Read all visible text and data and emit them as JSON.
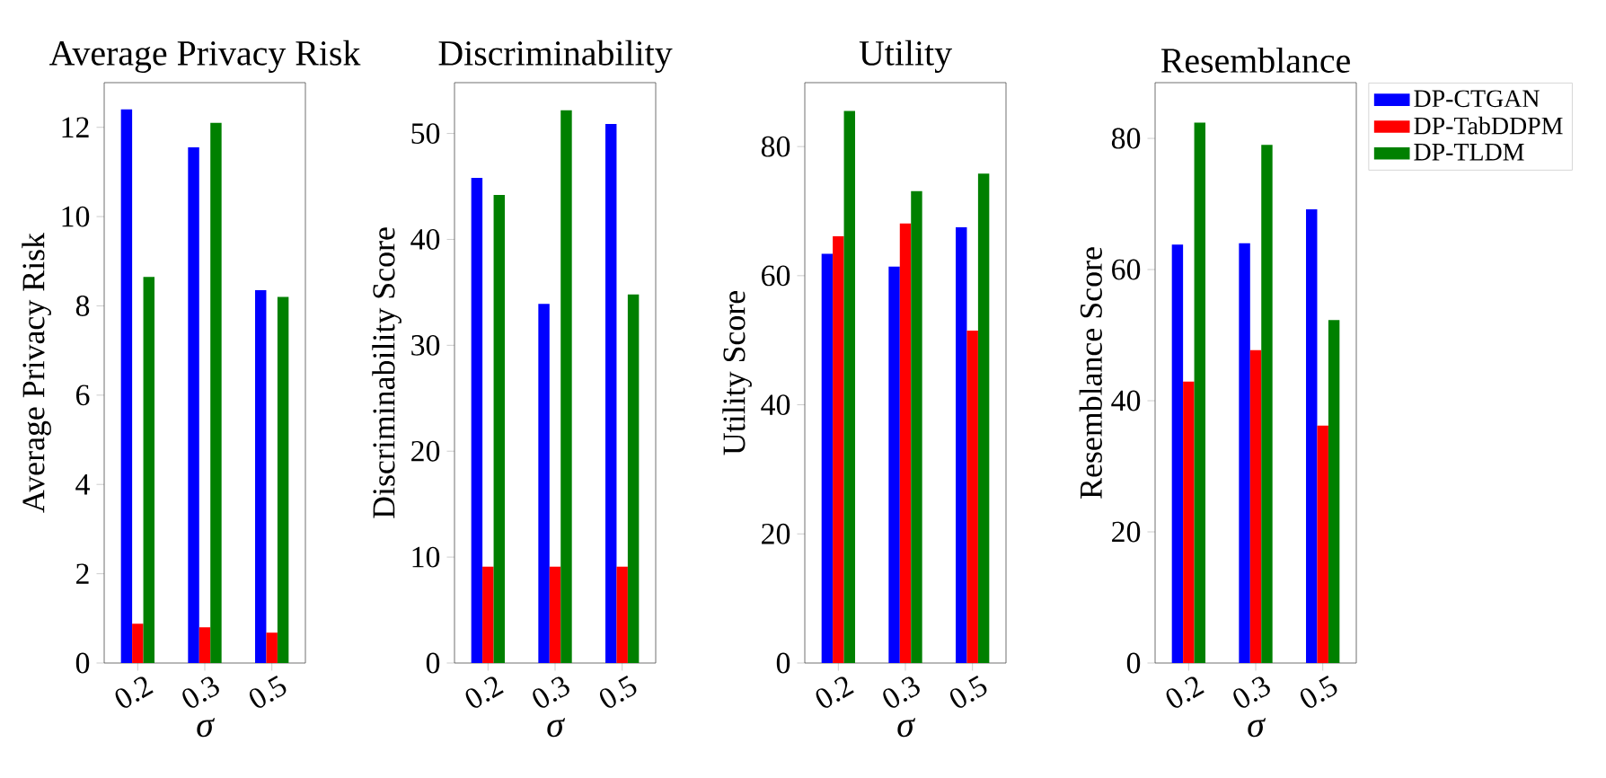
{
  "chart_data": [
    {
      "type": "bar",
      "title": "Average Privacy Risk",
      "xlabel": "σ",
      "ylabel": "Average Privacy Risk",
      "categories": [
        "0.2",
        "0.3",
        "0.5"
      ],
      "ylim": [
        0,
        13
      ],
      "yticks": [
        0,
        2,
        4,
        6,
        8,
        10,
        12
      ],
      "series": [
        {
          "color": "#0000ff",
          "values": [
            12.4,
            11.55,
            8.35
          ]
        },
        {
          "color": "#ff0000",
          "values": [
            0.88,
            0.8,
            0.68
          ]
        },
        {
          "color": "#008000",
          "values": [
            8.65,
            12.1,
            8.2
          ]
        }
      ]
    },
    {
      "type": "bar",
      "title": "Discriminability",
      "xlabel": "σ",
      "ylabel": "Discriminability Score",
      "categories": [
        "0.2",
        "0.3",
        "0.5"
      ],
      "ylim": [
        0,
        54.8
      ],
      "yticks": [
        0,
        10,
        20,
        30,
        40,
        50
      ],
      "series": [
        {
          "color": "#0000ff",
          "values": [
            45.8,
            33.9,
            50.9
          ]
        },
        {
          "color": "#ff0000",
          "values": [
            9.1,
            9.1,
            9.1
          ]
        },
        {
          "color": "#008000",
          "values": [
            44.2,
            52.2,
            34.8
          ]
        }
      ]
    },
    {
      "type": "bar",
      "title": "Utility",
      "xlabel": "σ",
      "ylabel": "Utility Score",
      "categories": [
        "0.2",
        "0.3",
        "0.5"
      ],
      "ylim": [
        0,
        89.9
      ],
      "yticks": [
        0,
        20,
        40,
        60,
        80
      ],
      "series": [
        {
          "color": "#0000ff",
          "values": [
            63.4,
            61.4,
            67.5
          ]
        },
        {
          "color": "#ff0000",
          "values": [
            66.1,
            68.1,
            51.5
          ]
        },
        {
          "color": "#008000",
          "values": [
            85.5,
            73.1,
            75.8
          ]
        }
      ]
    },
    {
      "type": "bar",
      "title": "Resemblance",
      "xlabel": "σ",
      "ylabel": "Resemblance Score",
      "categories": [
        "0.2",
        "0.3",
        "0.5"
      ],
      "ylim": [
        0,
        88.5
      ],
      "yticks": [
        0,
        20,
        40,
        60,
        80
      ],
      "legend": "right",
      "series": [
        {
          "name": "DP-CTGAN",
          "color": "#0000ff",
          "values": [
            63.8,
            64.0,
            69.2
          ]
        },
        {
          "name": "DP-TabDDPM",
          "color": "#ff0000",
          "values": [
            42.9,
            47.7,
            36.2
          ]
        },
        {
          "name": "DP-TLDM",
          "color": "#008000",
          "values": [
            82.4,
            79.0,
            52.3
          ]
        }
      ]
    }
  ]
}
